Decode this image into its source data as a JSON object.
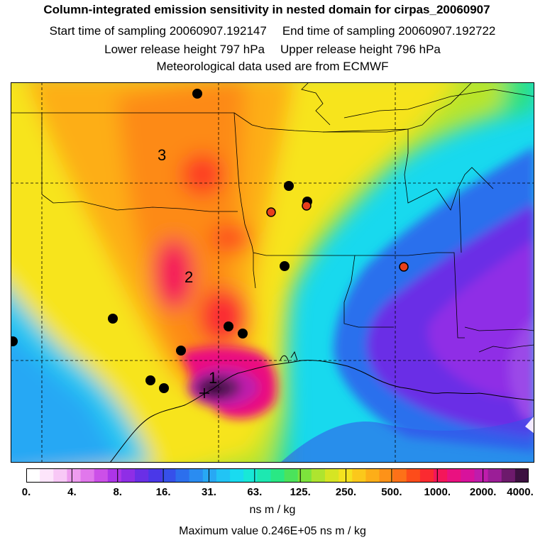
{
  "header": {
    "title": "Column-integrated emission sensitivity in nested domain for cirpas_20060907",
    "start_label": "Start time of sampling 20060907.192147",
    "end_label": "End time of sampling 20060907.192722",
    "lower_label": "Lower release height  797 hPa",
    "upper_label": "Upper release height  796 hPa",
    "met_label": "Meteorological data used are from ECMWF"
  },
  "map": {
    "markers": [
      {
        "label": "1"
      },
      {
        "label": "2"
      },
      {
        "label": "3"
      }
    ]
  },
  "colorbar": {
    "ticks": [
      "0.",
      "4.",
      "8.",
      "16.",
      "31.",
      "63.",
      "125.",
      "250.",
      "500.",
      "1000.",
      "2000.",
      "4000."
    ],
    "units": "ns m / kg",
    "colors": [
      "#ffffff",
      "#fde5fb",
      "#f8c8f6",
      "#ee9cef",
      "#e177ec",
      "#cc4fe8",
      "#ad35e8",
      "#8f2ee6",
      "#6a2fe6",
      "#4a38e8",
      "#3650ea",
      "#2c6fed",
      "#2a8cf1",
      "#28a8f4",
      "#22c4f5",
      "#19dbf0",
      "#18e8d7",
      "#1de8b1",
      "#29e884",
      "#4be35b",
      "#7de43c",
      "#aee42f",
      "#d6e523",
      "#f4e21f",
      "#fbc81b",
      "#fdae18",
      "#fd9218",
      "#fd7118",
      "#fd4c1a",
      "#fb2a30",
      "#f4165a",
      "#ea1180",
      "#d8129c",
      "#bf1cac",
      "#9b1e97",
      "#6d1a6c",
      "#3c1140"
    ]
  },
  "footer": {
    "max_value": "Maximum value  0.246E+05 ns m / kg"
  }
}
